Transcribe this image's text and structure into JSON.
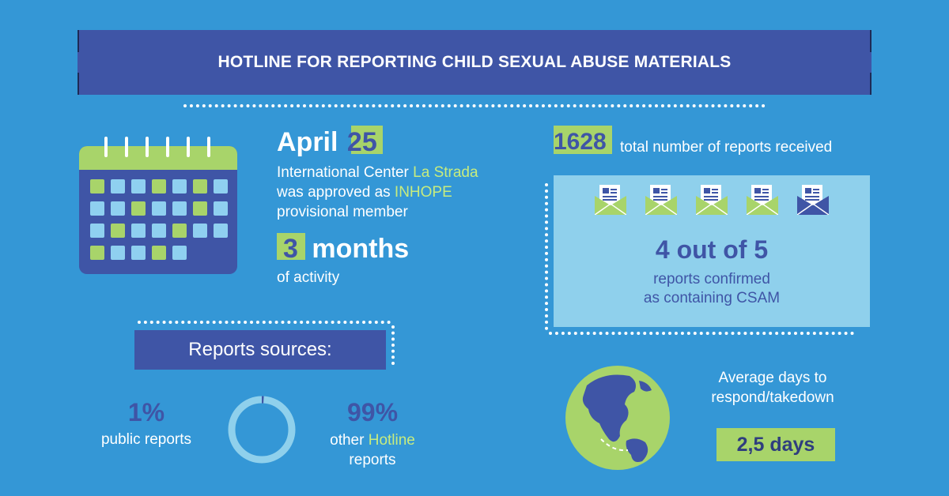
{
  "title": "HOTLINE FOR REPORTING CHILD SEXUAL ABUSE MATERIALS",
  "approval": {
    "month": "April",
    "day": "25",
    "line1_prefix": "International Center ",
    "line1_org": "La Strada",
    "line2_prefix": "was approved as ",
    "line2_org": "INHOPE",
    "line3": "provisional member"
  },
  "activity": {
    "count": "3",
    "unit": "months",
    "caption": "of activity"
  },
  "reports_total": {
    "value": "1628",
    "caption": "total number of reports received"
  },
  "confirmed": {
    "headline": "4 out of 5",
    "line1": "reports confirmed",
    "line2": "as containing CSAM",
    "confirmed_count": 4,
    "total_count": 5
  },
  "sources": {
    "heading": "Reports sources:",
    "public_pct": "1%",
    "public_label": "public reports",
    "hotline_pct": "99%",
    "hotline_prefix": "other ",
    "hotline_word": "Hotline",
    "hotline_suffix": "reports",
    "public_share": 0.01
  },
  "response": {
    "line1": "Average days to",
    "line2": "respond/takedown",
    "value": "2,5 days"
  },
  "colors": {
    "background": "#3497d6",
    "navy": "#3f55a6",
    "green": "#a8d46a",
    "light_blue": "#8fd0ec"
  }
}
